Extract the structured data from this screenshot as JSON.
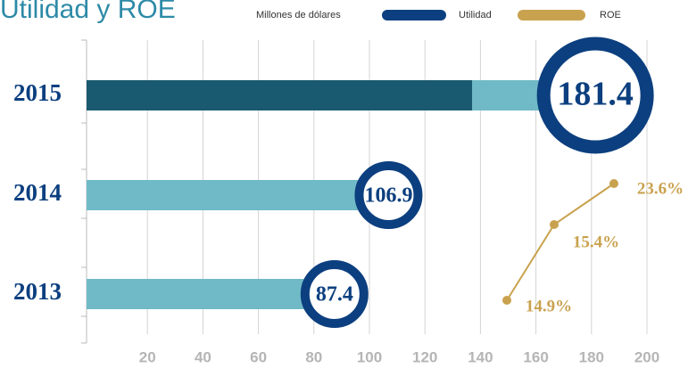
{
  "chart_data": {
    "type": "bar",
    "title": "Utilidad y ROE",
    "units_label": "Millones de dólares",
    "categories": [
      "2015",
      "2014",
      "2013"
    ],
    "series": [
      {
        "name": "Utilidad",
        "color": "#0c3f7f",
        "bar_colors": [
          "#1a5a70",
          "#6fbac6",
          "#6fbac6"
        ],
        "values": [
          181.4,
          106.9,
          87.4
        ]
      },
      {
        "name": "ROE",
        "color": "#c9a24f",
        "values": [
          23.6,
          15.4,
          14.9
        ],
        "value_labels": [
          "23.6%",
          "15.4%",
          "14.9%"
        ]
      }
    ],
    "xlim": [
      0,
      200
    ],
    "xticks": [
      20,
      40,
      60,
      80,
      100,
      120,
      140,
      160,
      180,
      200
    ],
    "grid": true
  }
}
